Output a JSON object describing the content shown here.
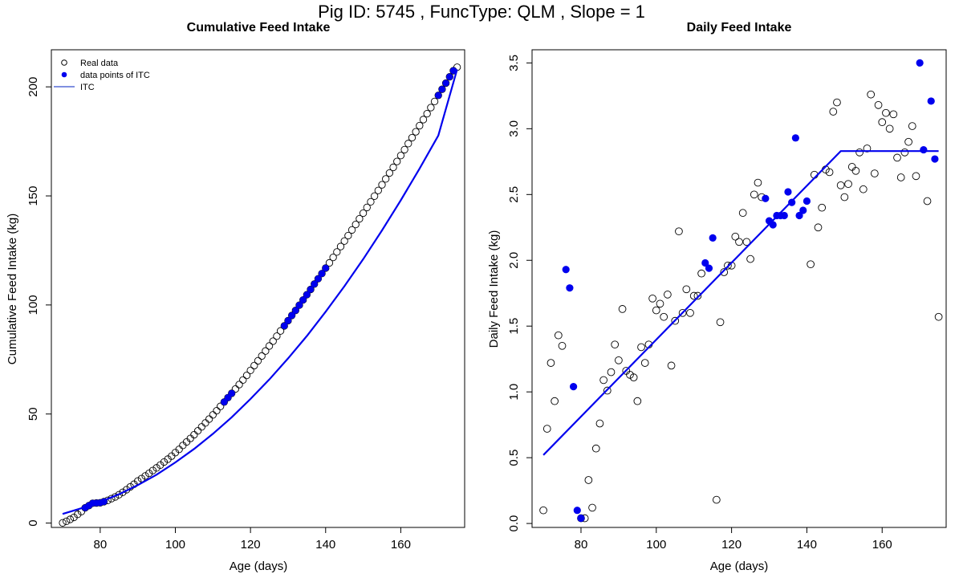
{
  "page_title": "Pig ID: 5745 , FuncType: QLM , Slope = 1",
  "colors": {
    "series": "#0000ee",
    "itc_legend": "#8090e0",
    "text": "#000000"
  },
  "chart_data": [
    {
      "type": "scatter",
      "title": "Cumulative Feed Intake",
      "xlabel": "Age (days)",
      "ylabel": "Cumulative Feed Intake (kg)",
      "xlim": [
        67,
        177
      ],
      "ylim": [
        -2,
        217
      ],
      "x_ticks": [
        80,
        100,
        120,
        140,
        160
      ],
      "y_ticks": [
        0,
        50,
        100,
        150,
        200
      ],
      "legend": {
        "position": "top-left",
        "entries": [
          {
            "label": "Real data",
            "symbol": "open-circle"
          },
          {
            "label": "data points of ITC",
            "symbol": "filled-circle"
          },
          {
            "label": "ITC",
            "symbol": "line"
          }
        ]
      },
      "series": [
        {
          "name": "Real data",
          "x": [
            70,
            71,
            72,
            73,
            74,
            75,
            76,
            77,
            78,
            79,
            80,
            81,
            82,
            83,
            84,
            85,
            86,
            87,
            88,
            89,
            90,
            91,
            92,
            93,
            94,
            95,
            96,
            97,
            98,
            99,
            100,
            101,
            102,
            103,
            104,
            105,
            106,
            107,
            108,
            109,
            110,
            111,
            112,
            113,
            114,
            115,
            116,
            117,
            118,
            119,
            120,
            121,
            122,
            123,
            124,
            125,
            126,
            127,
            128,
            129,
            130,
            131,
            132,
            133,
            134,
            135,
            136,
            137,
            138,
            139,
            140,
            141,
            142,
            143,
            144,
            145,
            146,
            147,
            148,
            149,
            150,
            151,
            152,
            153,
            154,
            155,
            156,
            157,
            158,
            159,
            160,
            161,
            162,
            163,
            164,
            165,
            166,
            167,
            168,
            169,
            170,
            171,
            172,
            173,
            174,
            175
          ],
          "y": [
            0.1,
            0.8,
            1.7,
            2.6,
            4.0,
            5.3,
            7.0,
            8.0,
            9.1,
            9.2,
            9.3,
            9.8,
            10.4,
            11.2,
            12.0,
            13.0,
            14.1,
            15.3,
            16.6,
            17.8,
            19.3,
            20.4,
            21.6,
            22.8,
            24.1,
            25.3,
            26.6,
            28.0,
            29.3,
            30.7,
            32.3,
            33.8,
            35.6,
            37.2,
            38.8,
            40.5,
            42.3,
            44.1,
            45.9,
            47.7,
            49.6,
            51.5,
            53.5,
            55.5,
            57.5,
            59.5,
            61.5,
            63.5,
            65.6,
            67.7,
            70.0,
            72.2,
            74.4,
            76.6,
            78.9,
            81.2,
            83.4,
            85.7,
            88.1,
            90.4,
            92.8,
            95.2,
            97.5,
            99.9,
            102.3,
            104.7,
            107.1,
            109.6,
            112.0,
            114.4,
            116.9,
            119.3,
            121.8,
            124.3,
            126.8,
            129.3,
            131.8,
            134.4,
            136.9,
            139.5,
            142.1,
            144.7,
            147.3,
            149.9,
            152.5,
            155.1,
            157.8,
            160.5,
            163.1,
            165.8,
            168.5,
            171.2,
            174.0,
            176.7,
            179.4,
            182.2,
            185.0,
            187.7,
            190.5,
            193.3,
            196.1,
            198.9,
            201.7,
            204.6,
            207.4,
            209.0
          ]
        },
        {
          "name": "data points of ITC",
          "x": [
            76,
            77,
            78,
            79,
            80,
            81,
            113,
            114,
            115,
            129,
            130,
            131,
            132,
            133,
            134,
            135,
            136,
            137,
            138,
            139,
            140,
            170,
            171,
            172,
            173,
            174
          ],
          "y": [
            7.0,
            8.0,
            9.1,
            9.2,
            9.3,
            9.8,
            55.5,
            57.5,
            59.5,
            90.4,
            92.8,
            95.2,
            97.5,
            99.9,
            102.3,
            104.7,
            107.1,
            109.6,
            112.0,
            114.4,
            116.9,
            196.1,
            198.9,
            201.7,
            204.6,
            207.4
          ]
        }
      ],
      "itc_line": {
        "name": "ITC",
        "x": [
          70,
          75,
          80,
          85,
          90,
          95,
          100,
          105,
          110,
          115,
          120,
          125,
          130,
          135,
          140,
          145,
          150,
          155,
          160,
          165,
          170,
          175
        ],
        "y": [
          4.2,
          6.8,
          9.7,
          13.2,
          17.4,
          22.2,
          27.8,
          34.0,
          40.9,
          48.5,
          56.9,
          65.8,
          75.5,
          85.8,
          96.9,
          108.6,
          121.0,
          134.2,
          148.0,
          162.5,
          177.7,
          208.0
        ]
      }
    },
    {
      "type": "scatter",
      "title": "Daily Feed Intake",
      "xlabel": "Age (days)",
      "ylabel": "Daily Feed Intake (kg)",
      "xlim": [
        67,
        177
      ],
      "ylim": [
        -0.03,
        3.6
      ],
      "x_ticks": [
        80,
        100,
        120,
        140,
        160
      ],
      "y_ticks": [
        0.0,
        0.5,
        1.0,
        1.5,
        2.0,
        2.5,
        3.0,
        3.5
      ],
      "y_tick_labels": [
        "0.0",
        "0.5",
        "1.0",
        "1.5",
        "2.0",
        "2.5",
        "3.0",
        "3.5"
      ],
      "series": [
        {
          "name": "Real data",
          "x": [
            70,
            71,
            72,
            73,
            74,
            75,
            80,
            81,
            82,
            83,
            84,
            85,
            86,
            87,
            88,
            89,
            90,
            91,
            92,
            93,
            94,
            95,
            96,
            97,
            98,
            99,
            100,
            101,
            102,
            103,
            104,
            105,
            106,
            107,
            108,
            109,
            110,
            111,
            112,
            116,
            117,
            118,
            119,
            120,
            121,
            122,
            123,
            124,
            125,
            126,
            127,
            128,
            141,
            142,
            143,
            144,
            145,
            146,
            147,
            148,
            149,
            150,
            151,
            152,
            153,
            154,
            155,
            156,
            157,
            158,
            159,
            160,
            161,
            162,
            163,
            164,
            165,
            166,
            167,
            168,
            169,
            172,
            175
          ],
          "y": [
            0.1,
            0.72,
            1.22,
            0.93,
            1.43,
            1.35,
            0.04,
            0.04,
            0.33,
            0.12,
            0.57,
            0.76,
            1.09,
            1.01,
            1.15,
            1.36,
            1.24,
            1.63,
            1.16,
            1.13,
            1.11,
            0.93,
            1.34,
            1.22,
            1.36,
            1.71,
            1.62,
            1.67,
            1.57,
            1.74,
            1.2,
            1.54,
            2.22,
            1.6,
            1.78,
            1.6,
            1.73,
            1.73,
            1.9,
            0.18,
            1.53,
            1.91,
            1.96,
            1.96,
            2.18,
            2.14,
            2.36,
            2.14,
            2.01,
            2.5,
            2.59,
            2.48,
            1.97,
            2.65,
            2.25,
            2.4,
            2.69,
            2.67,
            3.13,
            3.2,
            2.57,
            2.48,
            2.58,
            2.71,
            2.68,
            2.82,
            2.54,
            2.85,
            3.26,
            2.66,
            3.18,
            3.05,
            3.12,
            3.0,
            3.11,
            2.78,
            2.63,
            2.82,
            2.9,
            3.02,
            2.64,
            2.45,
            1.57
          ]
        },
        {
          "name": "data points of ITC",
          "x": [
            76,
            77,
            78,
            79,
            80,
            113,
            114,
            115,
            129,
            130,
            131,
            132,
            133,
            134,
            135,
            136,
            137,
            138,
            139,
            140,
            170,
            171,
            173,
            174
          ],
          "y": [
            1.93,
            1.79,
            1.04,
            0.1,
            0.04,
            1.98,
            1.94,
            2.17,
            2.47,
            2.3,
            2.27,
            2.34,
            2.34,
            2.34,
            2.52,
            2.44,
            2.93,
            2.34,
            2.38,
            2.45,
            3.5,
            2.84,
            3.21,
            2.77
          ]
        }
      ],
      "itc_line": {
        "name": "ITC",
        "x": [
          70,
          149,
          175
        ],
        "y": [
          0.52,
          2.83,
          2.83
        ]
      }
    }
  ]
}
